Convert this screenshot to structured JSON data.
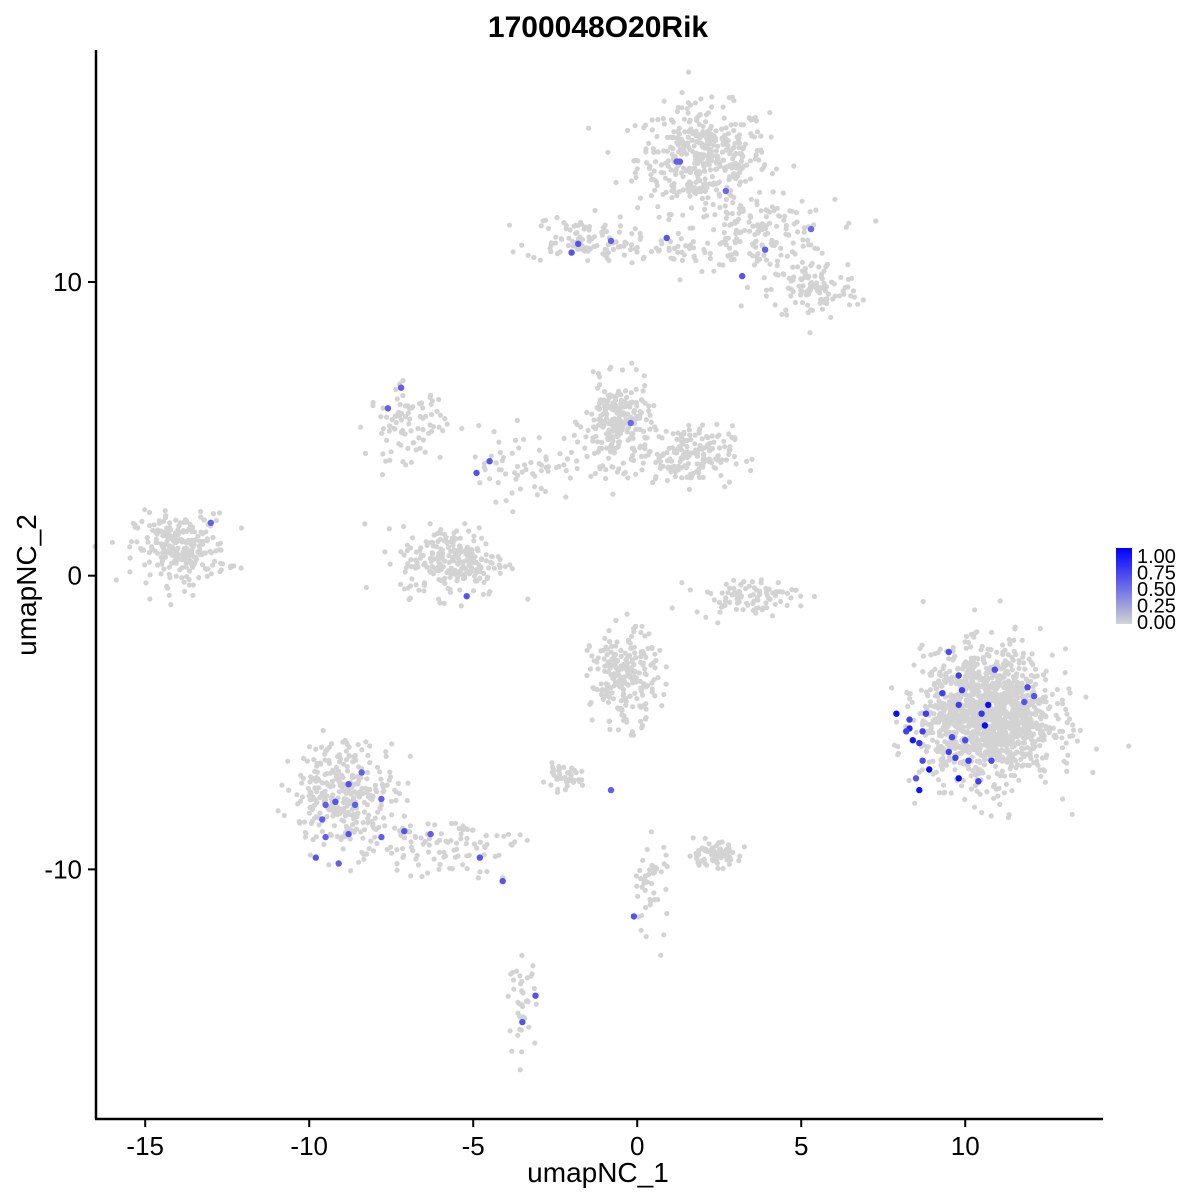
{
  "chart_data": {
    "type": "scatter",
    "title": "1700048O20Rik",
    "xlabel": "umapNC_1",
    "ylabel": "umapNC_2",
    "xlim": [
      -16.5,
      14.2
    ],
    "ylim": [
      -18.5,
      17.9
    ],
    "x_ticks": [
      -15,
      -10,
      -5,
      0,
      5,
      10
    ],
    "x_tick_labels": [
      "-15",
      "-10",
      "-5",
      "0",
      "5",
      "10"
    ],
    "y_ticks": [
      -10,
      0,
      10
    ],
    "y_tick_labels": [
      "-10",
      "0",
      "10"
    ],
    "grid": false,
    "legend_placement": "right",
    "color_scale": {
      "low_color": "#d3d3d3",
      "high_color": "#0000ff",
      "min": 0,
      "max": 1,
      "labels": [
        "1.00",
        "0.75",
        "0.50",
        "0.25",
        "0.00"
      ]
    },
    "clusters_zero_expression": [
      {
        "cx": 2.0,
        "cy": 14.2,
        "sx": 1.0,
        "sy": 0.9,
        "n": 420
      },
      {
        "cx": 3.8,
        "cy": 11.6,
        "sx": 1.1,
        "sy": 0.6,
        "n": 160
      },
      {
        "cx": 5.4,
        "cy": 9.7,
        "sx": 0.7,
        "sy": 0.5,
        "n": 110
      },
      {
        "cx": -1.8,
        "cy": 11.5,
        "sx": 0.8,
        "sy": 0.4,
        "n": 90
      },
      {
        "cx": 0.3,
        "cy": 11.1,
        "sx": 1.0,
        "sy": 0.2,
        "n": 50
      },
      {
        "cx": -13.9,
        "cy": 0.9,
        "sx": 0.7,
        "sy": 0.6,
        "n": 260
      },
      {
        "cx": -7.0,
        "cy": 5.2,
        "sx": 0.6,
        "sy": 0.6,
        "n": 90
      },
      {
        "cx": -0.6,
        "cy": 5.2,
        "sx": 0.5,
        "sy": 0.7,
        "n": 230
      },
      {
        "cx": 1.5,
        "cy": 4.1,
        "sx": 0.7,
        "sy": 0.5,
        "n": 180
      },
      {
        "cx": -5.6,
        "cy": 0.5,
        "sx": 0.8,
        "sy": 0.6,
        "n": 240
      },
      {
        "cx": -3.0,
        "cy": 3.8,
        "sx": 1.3,
        "sy": 0.6,
        "n": 80
      },
      {
        "cx": 3.3,
        "cy": -0.7,
        "sx": 0.8,
        "sy": 0.3,
        "n": 90
      },
      {
        "cx": 10.7,
        "cy": -4.8,
        "sx": 1.0,
        "sy": 1.1,
        "n": 1400
      },
      {
        "cx": -0.4,
        "cy": -3.5,
        "sx": 0.5,
        "sy": 0.8,
        "n": 230
      },
      {
        "cx": -8.9,
        "cy": -7.4,
        "sx": 0.8,
        "sy": 0.9,
        "n": 330
      },
      {
        "cx": -6.0,
        "cy": -9.2,
        "sx": 1.2,
        "sy": 0.5,
        "n": 100
      },
      {
        "cx": 2.3,
        "cy": -9.5,
        "sx": 0.4,
        "sy": 0.2,
        "n": 80
      },
      {
        "cx": -2.3,
        "cy": -6.9,
        "sx": 0.3,
        "sy": 0.2,
        "n": 40
      },
      {
        "cx": 0.4,
        "cy": -10.6,
        "sx": 0.3,
        "sy": 0.9,
        "n": 45
      },
      {
        "cx": -3.5,
        "cy": -14.5,
        "sx": 0.2,
        "sy": 0.7,
        "n": 40
      }
    ],
    "expressing_points": [
      {
        "x": 1.2,
        "y": 14.1,
        "v": 0.55
      },
      {
        "x": 1.3,
        "y": 14.1,
        "v": 0.55
      },
      {
        "x": 2.7,
        "y": 13.1,
        "v": 0.5
      },
      {
        "x": 5.3,
        "y": 11.8,
        "v": 0.5
      },
      {
        "x": 3.9,
        "y": 11.1,
        "v": 0.55
      },
      {
        "x": 3.2,
        "y": 10.2,
        "v": 0.6
      },
      {
        "x": 0.9,
        "y": 11.5,
        "v": 0.6
      },
      {
        "x": -0.8,
        "y": 11.4,
        "v": 0.55
      },
      {
        "x": -1.8,
        "y": 11.3,
        "v": 0.6
      },
      {
        "x": -2.0,
        "y": 11.0,
        "v": 0.6
      },
      {
        "x": -7.2,
        "y": 6.4,
        "v": 0.55
      },
      {
        "x": -7.6,
        "y": 5.7,
        "v": 0.55
      },
      {
        "x": -0.2,
        "y": 5.2,
        "v": 0.5
      },
      {
        "x": -4.5,
        "y": 3.9,
        "v": 0.6
      },
      {
        "x": -4.9,
        "y": 3.5,
        "v": 0.6
      },
      {
        "x": -13.0,
        "y": 1.8,
        "v": 0.55
      },
      {
        "x": -5.2,
        "y": -0.7,
        "v": 0.6
      },
      {
        "x": -0.8,
        "y": -7.3,
        "v": 0.55
      },
      {
        "x": -0.1,
        "y": -11.6,
        "v": 0.6
      },
      {
        "x": -3.1,
        "y": -14.3,
        "v": 0.6
      },
      {
        "x": -3.5,
        "y": -15.2,
        "v": 0.6
      },
      {
        "x": -9.8,
        "y": -9.6,
        "v": 0.6
      },
      {
        "x": -9.5,
        "y": -8.9,
        "v": 0.55
      },
      {
        "x": -9.6,
        "y": -8.3,
        "v": 0.55
      },
      {
        "x": -9.5,
        "y": -7.8,
        "v": 0.55
      },
      {
        "x": -9.2,
        "y": -7.7,
        "v": 0.6
      },
      {
        "x": -9.1,
        "y": -9.8,
        "v": 0.55
      },
      {
        "x": -8.8,
        "y": -7.1,
        "v": 0.6
      },
      {
        "x": -8.6,
        "y": -7.8,
        "v": 0.55
      },
      {
        "x": -8.4,
        "y": -6.7,
        "v": 0.55
      },
      {
        "x": -8.8,
        "y": -8.8,
        "v": 0.6
      },
      {
        "x": -7.8,
        "y": -7.6,
        "v": 0.55
      },
      {
        "x": -7.8,
        "y": -8.9,
        "v": 0.55
      },
      {
        "x": -7.1,
        "y": -8.7,
        "v": 0.6
      },
      {
        "x": -6.3,
        "y": -8.8,
        "v": 0.55
      },
      {
        "x": -4.8,
        "y": -9.6,
        "v": 0.6
      },
      {
        "x": -4.1,
        "y": -10.4,
        "v": 0.6
      },
      {
        "x": 7.9,
        "y": -4.7,
        "v": 0.95
      },
      {
        "x": 8.3,
        "y": -4.9,
        "v": 0.7
      },
      {
        "x": 8.3,
        "y": -5.2,
        "v": 0.8
      },
      {
        "x": 8.4,
        "y": -5.6,
        "v": 0.9
      },
      {
        "x": 8.6,
        "y": -5.7,
        "v": 0.75
      },
      {
        "x": 8.2,
        "y": -5.3,
        "v": 0.7
      },
      {
        "x": 8.7,
        "y": -5.3,
        "v": 0.7
      },
      {
        "x": 8.8,
        "y": -4.7,
        "v": 0.7
      },
      {
        "x": 8.7,
        "y": -6.3,
        "v": 0.65
      },
      {
        "x": 8.9,
        "y": -6.6,
        "v": 0.95
      },
      {
        "x": 8.5,
        "y": -6.9,
        "v": 0.6
      },
      {
        "x": 8.6,
        "y": -7.3,
        "v": 0.9
      },
      {
        "x": 9.3,
        "y": -4.0,
        "v": 0.7
      },
      {
        "x": 9.6,
        "y": -5.5,
        "v": 0.65
      },
      {
        "x": 9.5,
        "y": -6.0,
        "v": 0.7
      },
      {
        "x": 9.7,
        "y": -6.2,
        "v": 0.7
      },
      {
        "x": 9.8,
        "y": -4.4,
        "v": 0.7
      },
      {
        "x": 9.8,
        "y": -3.4,
        "v": 0.7
      },
      {
        "x": 9.5,
        "y": -2.6,
        "v": 0.65
      },
      {
        "x": 9.9,
        "y": -3.9,
        "v": 0.7
      },
      {
        "x": 10.0,
        "y": -5.6,
        "v": 0.65
      },
      {
        "x": 10.1,
        "y": -6.3,
        "v": 0.7
      },
      {
        "x": 10.4,
        "y": -7.0,
        "v": 0.7
      },
      {
        "x": 10.5,
        "y": -4.7,
        "v": 0.75
      },
      {
        "x": 10.6,
        "y": -5.1,
        "v": 0.95
      },
      {
        "x": 10.7,
        "y": -4.4,
        "v": 0.95
      },
      {
        "x": 10.8,
        "y": -6.3,
        "v": 0.65
      },
      {
        "x": 9.8,
        "y": -6.9,
        "v": 0.95
      },
      {
        "x": 10.9,
        "y": -3.2,
        "v": 0.65
      },
      {
        "x": 11.9,
        "y": -3.8,
        "v": 0.65
      },
      {
        "x": 12.1,
        "y": -4.1,
        "v": 0.6
      },
      {
        "x": 11.8,
        "y": -4.3,
        "v": 0.6
      }
    ]
  }
}
